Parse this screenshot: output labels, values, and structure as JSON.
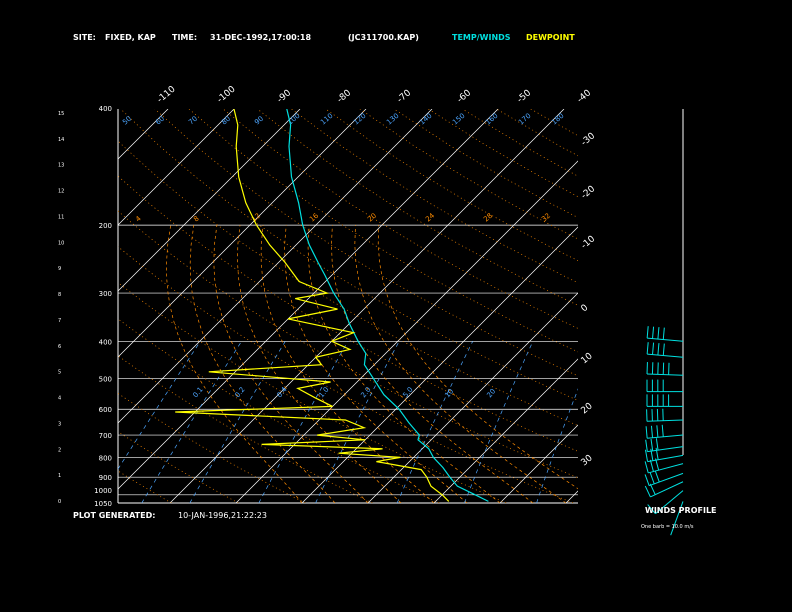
{
  "header": {
    "site_label": "SITE:",
    "site_value": "FIXED, KAP",
    "time_label": "TIME:",
    "time_value": "31-DEC-1992,17:00:18",
    "file_id": "(JC311700.KAP)",
    "temp_winds_label": "TEMP/WINDS",
    "dewpoint_label": "DEWPOINT"
  },
  "footer": {
    "plot_generated_label": "PLOT GENERATED:",
    "plot_generated_value": "10-JAN-1996,21:22:23",
    "winds_profile_label": "WINDS PROFILE",
    "barb_note": "One barb = 10.0 m/s"
  },
  "colors": {
    "background": "#000000",
    "temperature": "#00e0e0",
    "dewpoint": "#ffff00",
    "isotherms": "#ffffff",
    "isobars": "#ffffff",
    "dry_adiabats": "#ff8c00",
    "moist_adiabats": "#ff8c00",
    "mixing_ratio": "#4da6ff",
    "wind_barbs": "#00e0e0",
    "text": "#ffffff"
  },
  "chart_data": {
    "type": "line",
    "chart_kind": "skew-T log-P sounding",
    "y_scale": "log pressure",
    "ylim_hpa": [
      1050,
      400
    ],
    "xlim_temp_c": [
      -40,
      30
    ],
    "left_pressure_ticks": [
      "400",
      "200",
      "300",
      "400",
      "500",
      "600",
      "700",
      "800",
      "900",
      "1000",
      "1050"
    ],
    "left_height_ticks": [
      "15",
      "14",
      "13",
      "12",
      "11",
      "10",
      "9",
      "8",
      "7",
      "6",
      "5",
      "4",
      "3",
      "2",
      "1",
      "0"
    ],
    "isotherm_labels_top": [
      "-110",
      "-100",
      "-90",
      "-80",
      "-70",
      "-60",
      "-50",
      "-40"
    ],
    "isotherm_labels_right": [
      "-30",
      "-20",
      "-10",
      "0",
      "10",
      "20",
      "30"
    ],
    "dry_adiabat_labels": [
      "4",
      "8",
      "12",
      "16",
      "20",
      "24",
      "28",
      "32"
    ],
    "mixing_ratio_labels": [
      "0.1",
      "0.2",
      "0.4",
      "1.0",
      "2.0",
      "5.0",
      "10",
      "20"
    ],
    "theta_labels_top": [
      "50",
      "60",
      "70",
      "80",
      "90",
      "100",
      "110",
      "120",
      "130",
      "140",
      "150",
      "160",
      "170",
      "180"
    ],
    "series": [
      {
        "key": "temperature",
        "points": [
          {
            "p": 1040,
            "t": 18.0
          },
          {
            "p": 1000,
            "t": 15.0
          },
          {
            "p": 950,
            "t": 11.0
          },
          {
            "p": 900,
            "t": 8.5
          },
          {
            "p": 850,
            "t": 6.0
          },
          {
            "p": 800,
            "t": 3.0
          },
          {
            "p": 760,
            "t": 1.0
          },
          {
            "p": 720,
            "t": -2.0
          },
          {
            "p": 700,
            "t": -2.5
          },
          {
            "p": 650,
            "t": -6.0
          },
          {
            "p": 600,
            "t": -9.5
          },
          {
            "p": 550,
            "t": -14.0
          },
          {
            "p": 500,
            "t": -18.0
          },
          {
            "p": 460,
            "t": -21.5
          },
          {
            "p": 430,
            "t": -23.0
          },
          {
            "p": 400,
            "t": -26.0
          },
          {
            "p": 360,
            "t": -30.0
          },
          {
            "p": 330,
            "t": -33.0
          },
          {
            "p": 300,
            "t": -37.0
          },
          {
            "p": 270,
            "t": -41.0
          },
          {
            "p": 250,
            "t": -44.0
          },
          {
            "p": 225,
            "t": -48.0
          },
          {
            "p": 200,
            "t": -52.0
          },
          {
            "p": 175,
            "t": -56.0
          },
          {
            "p": 150,
            "t": -61.0
          },
          {
            "p": 125,
            "t": -66.0
          },
          {
            "p": 110,
            "t": -69.0
          },
          {
            "p": 100,
            "t": -72.0
          }
        ]
      },
      {
        "key": "dewpoint",
        "points": [
          {
            "p": 1040,
            "t": 12.0
          },
          {
            "p": 1000,
            "t": 10.0
          },
          {
            "p": 950,
            "t": 7.0
          },
          {
            "p": 900,
            "t": 5.0
          },
          {
            "p": 860,
            "t": 3.0
          },
          {
            "p": 820,
            "t": -5.0
          },
          {
            "p": 800,
            "t": -2.0
          },
          {
            "p": 780,
            "t": -12.0
          },
          {
            "p": 760,
            "t": -6.0
          },
          {
            "p": 740,
            "t": -25.0
          },
          {
            "p": 720,
            "t": -10.0
          },
          {
            "p": 700,
            "t": -18.0
          },
          {
            "p": 670,
            "t": -12.0
          },
          {
            "p": 640,
            "t": -16.0
          },
          {
            "p": 610,
            "t": -43.0
          },
          {
            "p": 590,
            "t": -20.0
          },
          {
            "p": 560,
            "t": -24.0
          },
          {
            "p": 530,
            "t": -28.0
          },
          {
            "p": 510,
            "t": -24.0
          },
          {
            "p": 480,
            "t": -44.0
          },
          {
            "p": 460,
            "t": -28.0
          },
          {
            "p": 440,
            "t": -30.0
          },
          {
            "p": 420,
            "t": -26.0
          },
          {
            "p": 400,
            "t": -30.0
          },
          {
            "p": 380,
            "t": -28.0
          },
          {
            "p": 350,
            "t": -40.0
          },
          {
            "p": 330,
            "t": -34.0
          },
          {
            "p": 310,
            "t": -42.0
          },
          {
            "p": 300,
            "t": -38.0
          },
          {
            "p": 280,
            "t": -44.0
          },
          {
            "p": 250,
            "t": -49.0
          },
          {
            "p": 225,
            "t": -54.0
          },
          {
            "p": 200,
            "t": -59.0
          },
          {
            "p": 175,
            "t": -64.0
          },
          {
            "p": 150,
            "t": -69.0
          },
          {
            "p": 125,
            "t": -74.0
          },
          {
            "p": 110,
            "t": -77.0
          },
          {
            "p": 100,
            "t": -80.0
          }
        ]
      }
    ],
    "winds": [
      {
        "p": 1040,
        "dir": 200,
        "spd_ms": 4
      },
      {
        "p": 975,
        "dir": 230,
        "spd_ms": 12
      },
      {
        "p": 925,
        "dir": 245,
        "spd_ms": 20
      },
      {
        "p": 880,
        "dir": 250,
        "spd_ms": 26
      },
      {
        "p": 830,
        "dir": 255,
        "spd_ms": 30
      },
      {
        "p": 790,
        "dir": 260,
        "spd_ms": 32
      },
      {
        "p": 750,
        "dir": 262,
        "spd_ms": 30
      },
      {
        "p": 700,
        "dir": 265,
        "spd_ms": 35
      },
      {
        "p": 640,
        "dir": 268,
        "spd_ms": 40
      },
      {
        "p": 590,
        "dir": 270,
        "spd_ms": 45
      },
      {
        "p": 540,
        "dir": 270,
        "spd_ms": 40
      },
      {
        "p": 490,
        "dir": 272,
        "spd_ms": 45
      },
      {
        "p": 440,
        "dir": 275,
        "spd_ms": 40
      },
      {
        "p": 400,
        "dir": 275,
        "spd_ms": 40
      }
    ]
  }
}
